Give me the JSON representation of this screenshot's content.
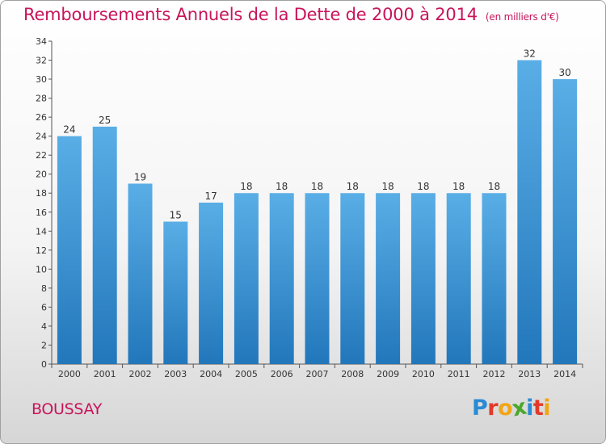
{
  "title": "Remboursements Annuels de la Dette de 2000 à 2014",
  "unit_note": "(en milliers d'€)",
  "commune": "BOUSSAY",
  "logo": {
    "text": "Proxiti",
    "letters": [
      {
        "ch": "P",
        "color": "#2a8ad4"
      },
      {
        "ch": "r",
        "color": "#e23a2a"
      },
      {
        "ch": "o",
        "color": "#f2a516"
      },
      {
        "ch": "x",
        "color": "#4aa82a"
      },
      {
        "ch": "i",
        "color": "#2a8ad4"
      },
      {
        "ch": "t",
        "color": "#e23a2a"
      },
      {
        "ch": "i",
        "color": "#f2a516"
      }
    ]
  },
  "colors": {
    "title": "#c8145a",
    "bar_top": "#5aaee6",
    "bar_bottom": "#2277bb",
    "axis": "#555555",
    "grid": "#cccccc"
  },
  "chart_data": {
    "type": "bar",
    "title": "Remboursements Annuels de la Dette de 2000 à 2014",
    "xlabel": "",
    "ylabel": "",
    "ylim": [
      0,
      34
    ],
    "yticks": [
      0,
      2,
      4,
      6,
      8,
      10,
      12,
      14,
      16,
      18,
      20,
      22,
      24,
      26,
      28,
      30,
      32,
      34
    ],
    "grid": false,
    "categories": [
      "2000",
      "2001",
      "2002",
      "2003",
      "2004",
      "2005",
      "2006",
      "2007",
      "2008",
      "2009",
      "2010",
      "2011",
      "2012",
      "2013",
      "2014"
    ],
    "values": [
      24,
      25,
      19,
      15,
      17,
      18,
      18,
      18,
      18,
      18,
      18,
      18,
      18,
      32,
      30
    ]
  }
}
